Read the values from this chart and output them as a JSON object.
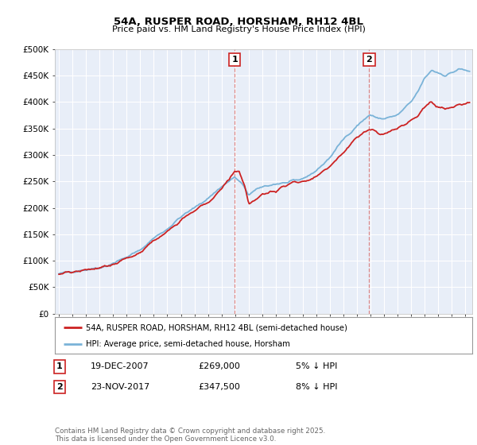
{
  "title_line1": "54A, RUSPER ROAD, HORSHAM, RH12 4BL",
  "title_line2": "Price paid vs. HM Land Registry's House Price Index (HPI)",
  "ylabel_ticks": [
    "£0",
    "£50K",
    "£100K",
    "£150K",
    "£200K",
    "£250K",
    "£300K",
    "£350K",
    "£400K",
    "£450K",
    "£500K"
  ],
  "ytick_vals": [
    0,
    50000,
    100000,
    150000,
    200000,
    250000,
    300000,
    350000,
    400000,
    450000,
    500000
  ],
  "ylim": [
    0,
    500000
  ],
  "xlim_start": 1994.7,
  "xlim_end": 2025.5,
  "hpi_color": "#7ab3d8",
  "price_color": "#cc2222",
  "marker1_x": 2007.97,
  "marker1_y": 269000,
  "marker2_x": 2017.9,
  "marker2_y": 347500,
  "legend_label1": "54A, RUSPER ROAD, HORSHAM, RH12 4BL (semi-detached house)",
  "legend_label2": "HPI: Average price, semi-detached house, Horsham",
  "annotation1": "1",
  "annotation2": "2",
  "table_row1": [
    "1",
    "19-DEC-2007",
    "£269,000",
    "5% ↓ HPI"
  ],
  "table_row2": [
    "2",
    "23-NOV-2017",
    "£347,500",
    "8% ↓ HPI"
  ],
  "footnote": "Contains HM Land Registry data © Crown copyright and database right 2025.\nThis data is licensed under the Open Government Licence v3.0.",
  "bg_color": "#ffffff",
  "plot_bg_color": "#e8eef8",
  "grid_color": "#ffffff",
  "vline_color": "#dd8888",
  "title1_fontsize": 9.5,
  "title2_fontsize": 8.0
}
